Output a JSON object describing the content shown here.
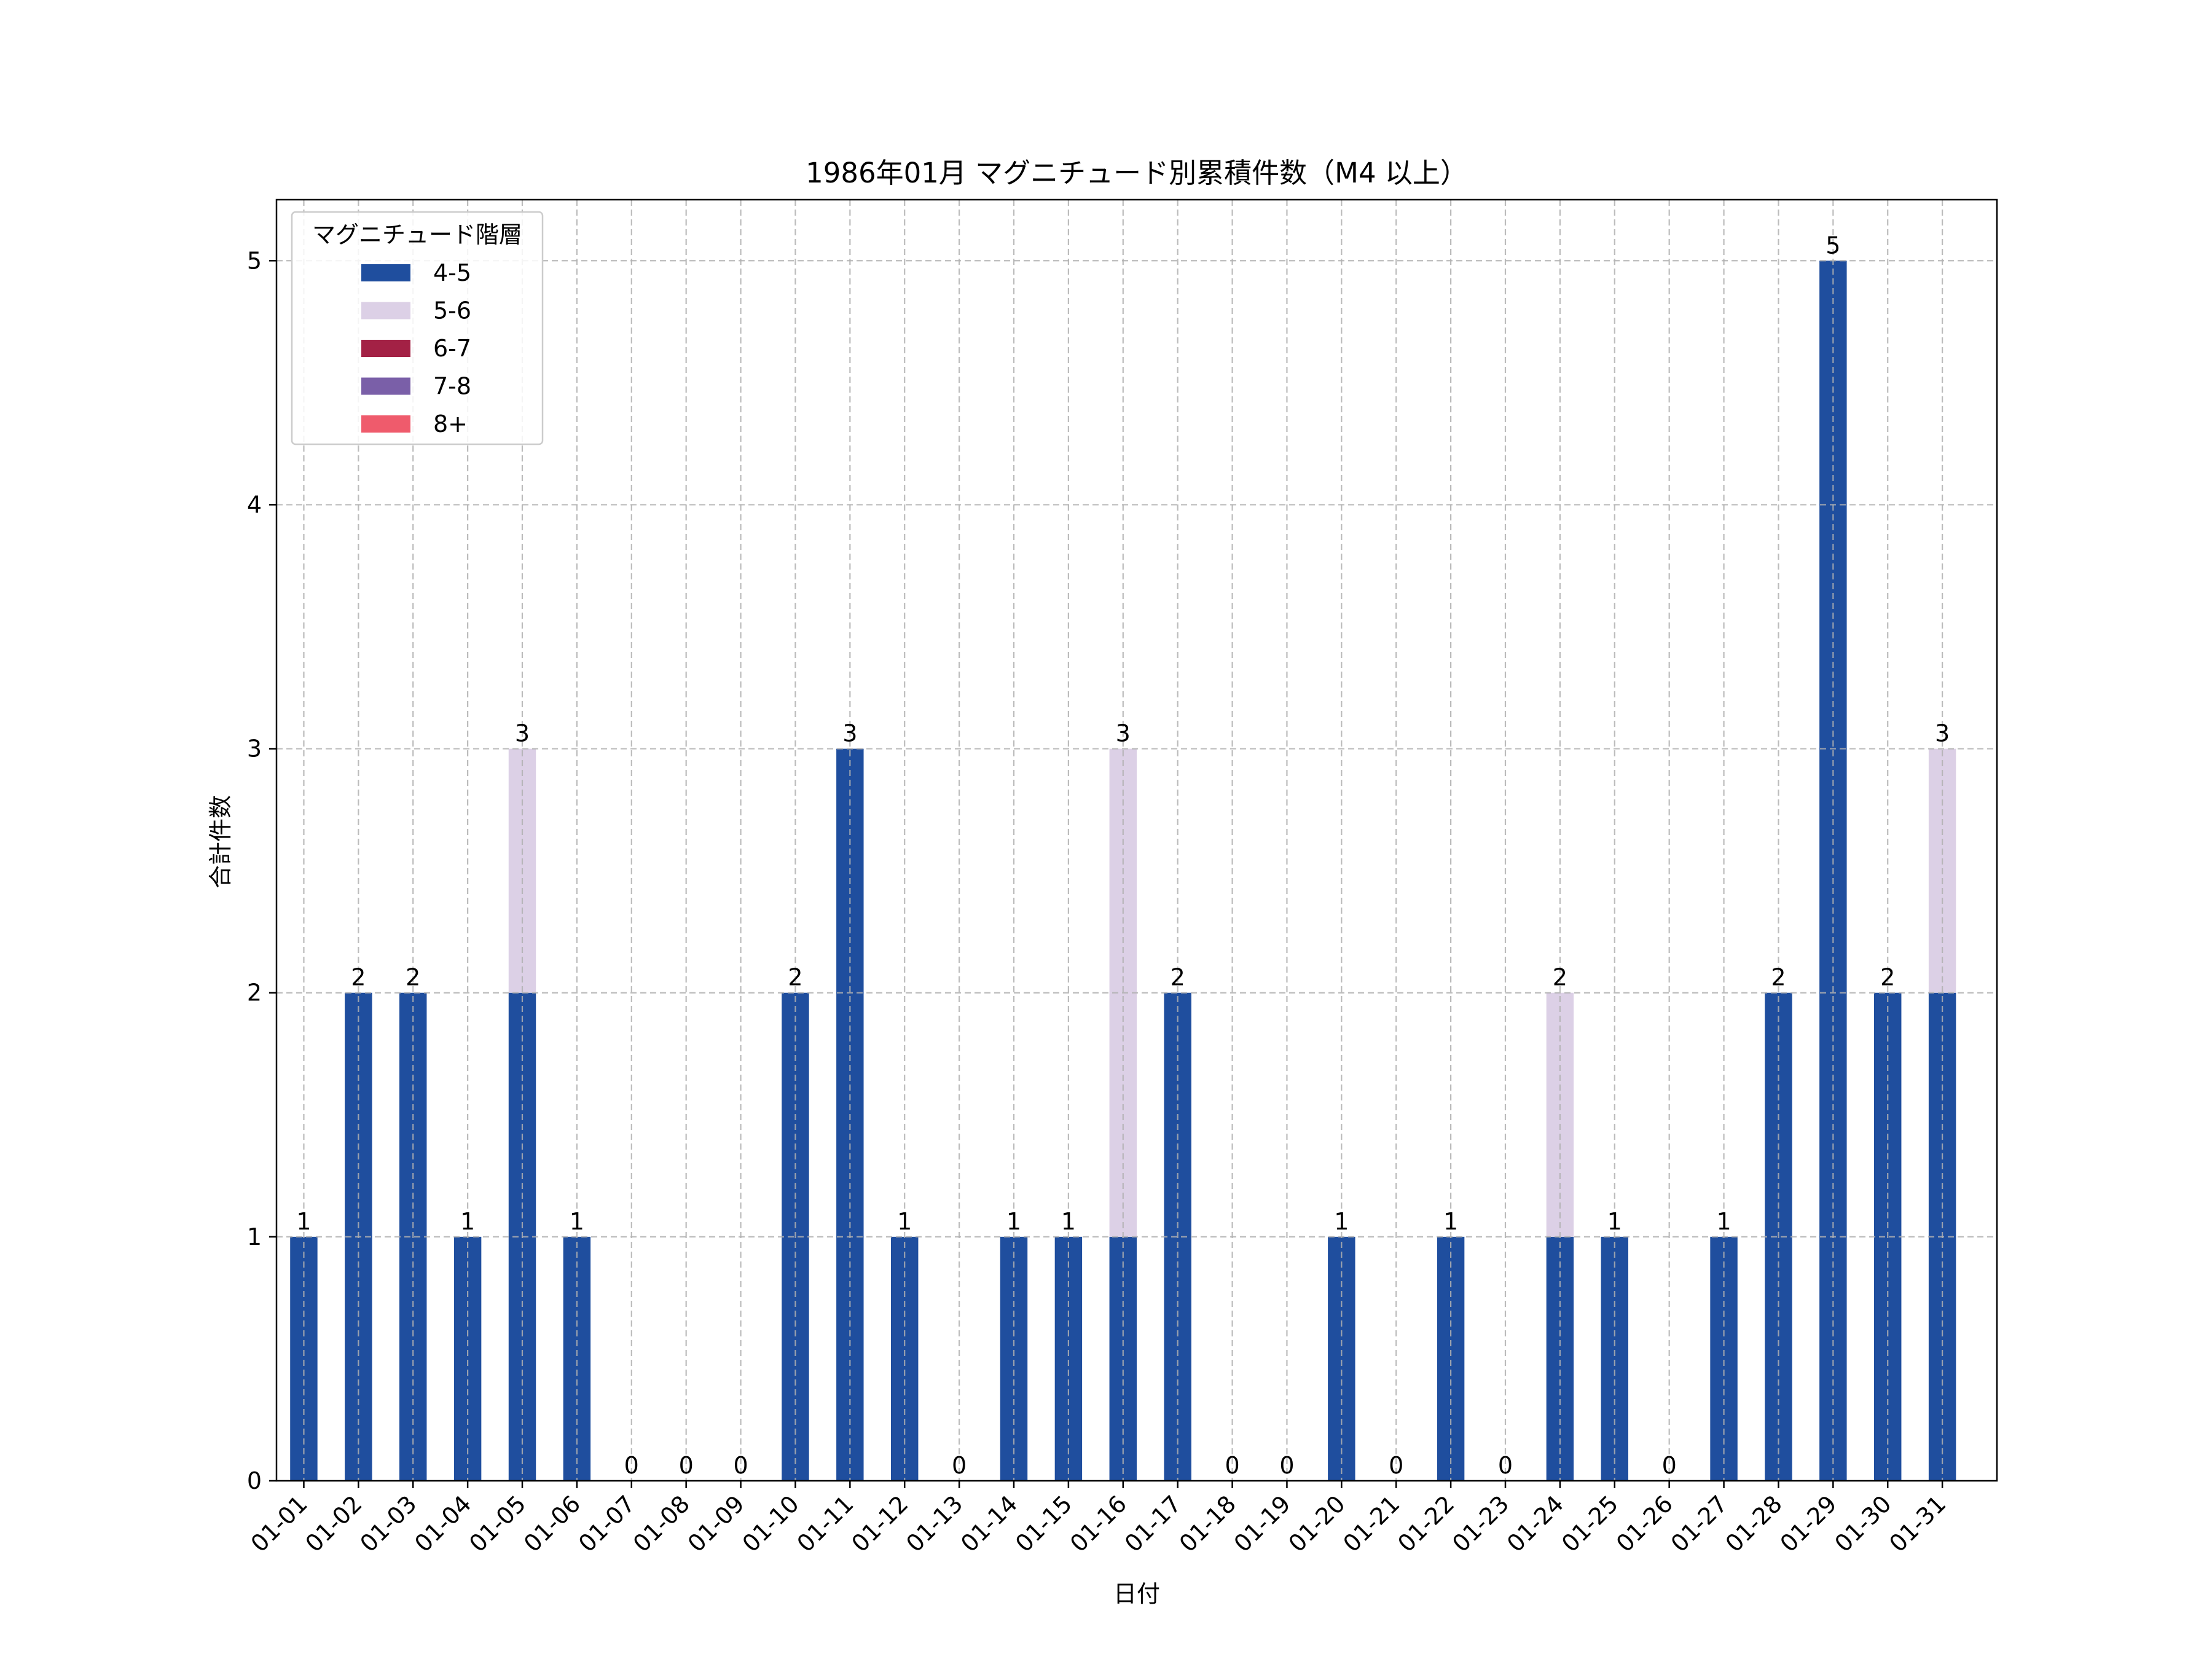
{
  "chart_data": {
    "type": "bar",
    "stacked": true,
    "title": "1986年01月 マグニチュード別累積件数（M4 以上）",
    "xlabel": "日付",
    "ylabel": "合計件数",
    "ylim": [
      0,
      5.25
    ],
    "yticks": [
      0,
      1,
      2,
      3,
      4,
      5
    ],
    "grid": true,
    "legend_title": "マグニチュード階層",
    "legend_position": "top-left",
    "categories": [
      "01-01",
      "01-02",
      "01-03",
      "01-04",
      "01-05",
      "01-06",
      "01-07",
      "01-08",
      "01-09",
      "01-10",
      "01-11",
      "01-12",
      "01-13",
      "01-14",
      "01-15",
      "01-16",
      "01-17",
      "01-18",
      "01-19",
      "01-20",
      "01-21",
      "01-22",
      "01-23",
      "01-24",
      "01-25",
      "01-26",
      "01-27",
      "01-28",
      "01-29",
      "01-30",
      "01-31"
    ],
    "series": [
      {
        "name": "4-5",
        "color": "#1f4e9e",
        "values": [
          1,
          2,
          2,
          1,
          2,
          1,
          0,
          0,
          0,
          2,
          3,
          1,
          0,
          1,
          1,
          1,
          2,
          0,
          0,
          1,
          0,
          1,
          0,
          1,
          1,
          0,
          1,
          2,
          5,
          2,
          2
        ]
      },
      {
        "name": "5-6",
        "color": "#dcd0e6",
        "values": [
          0,
          0,
          0,
          0,
          1,
          0,
          0,
          0,
          0,
          0,
          0,
          0,
          0,
          0,
          0,
          2,
          0,
          0,
          0,
          0,
          0,
          0,
          0,
          1,
          0,
          0,
          0,
          0,
          0,
          0,
          1
        ]
      },
      {
        "name": "6-7",
        "color": "#a32145",
        "values": [
          0,
          0,
          0,
          0,
          0,
          0,
          0,
          0,
          0,
          0,
          0,
          0,
          0,
          0,
          0,
          0,
          0,
          0,
          0,
          0,
          0,
          0,
          0,
          0,
          0,
          0,
          0,
          0,
          0,
          0,
          0
        ]
      },
      {
        "name": "7-8",
        "color": "#7a5fa8",
        "values": [
          0,
          0,
          0,
          0,
          0,
          0,
          0,
          0,
          0,
          0,
          0,
          0,
          0,
          0,
          0,
          0,
          0,
          0,
          0,
          0,
          0,
          0,
          0,
          0,
          0,
          0,
          0,
          0,
          0,
          0,
          0
        ]
      },
      {
        "name": "8+",
        "color": "#ef5b6c",
        "values": [
          0,
          0,
          0,
          0,
          0,
          0,
          0,
          0,
          0,
          0,
          0,
          0,
          0,
          0,
          0,
          0,
          0,
          0,
          0,
          0,
          0,
          0,
          0,
          0,
          0,
          0,
          0,
          0,
          0,
          0,
          0
        ]
      }
    ],
    "totals": [
      1,
      2,
      2,
      1,
      3,
      1,
      0,
      0,
      0,
      2,
      3,
      1,
      0,
      1,
      1,
      3,
      2,
      0,
      0,
      1,
      0,
      1,
      0,
      2,
      1,
      0,
      1,
      2,
      5,
      2,
      3
    ]
  }
}
